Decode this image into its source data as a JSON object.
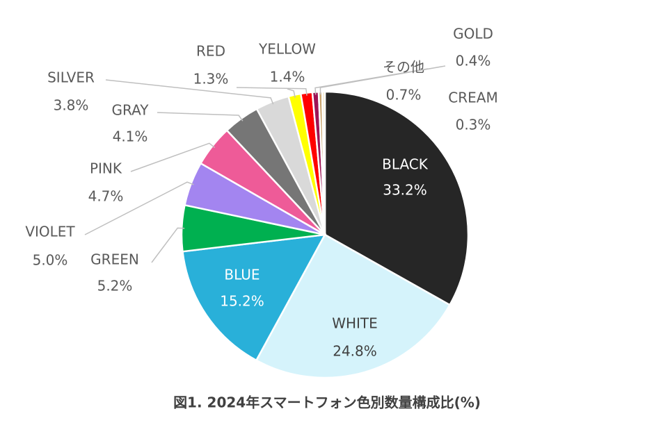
{
  "chart_data": {
    "type": "pie",
    "title": "図1. 2024年スマートフォン色別数量構成比(%)",
    "categories": [
      "BLACK",
      "WHITE",
      "BLUE",
      "GREEN",
      "VIOLET",
      "PINK",
      "GRAY",
      "SILVER",
      "YELLOW",
      "RED",
      "その他",
      "GOLD",
      "CREAM"
    ],
    "values": [
      33.2,
      24.8,
      15.2,
      5.2,
      5.0,
      4.7,
      4.1,
      3.8,
      1.4,
      1.3,
      0.7,
      0.4,
      0.3
    ],
    "value_labels": [
      "33.2%",
      "24.8%",
      "15.2%",
      "5.2%",
      "5.0%",
      "4.7%",
      "4.1%",
      "3.8%",
      "1.4%",
      "1.3%",
      "0.7%",
      "0.4%",
      "0.3%"
    ],
    "colors": [
      "#262626",
      "#d5f3fb",
      "#29b0d9",
      "#00b050",
      "#a385f0",
      "#ee5b98",
      "#767676",
      "#d9d9d9",
      "#ffff00",
      "#ff0000",
      "#9e1456",
      "#c9a36b",
      "#f1e6c6"
    ]
  }
}
